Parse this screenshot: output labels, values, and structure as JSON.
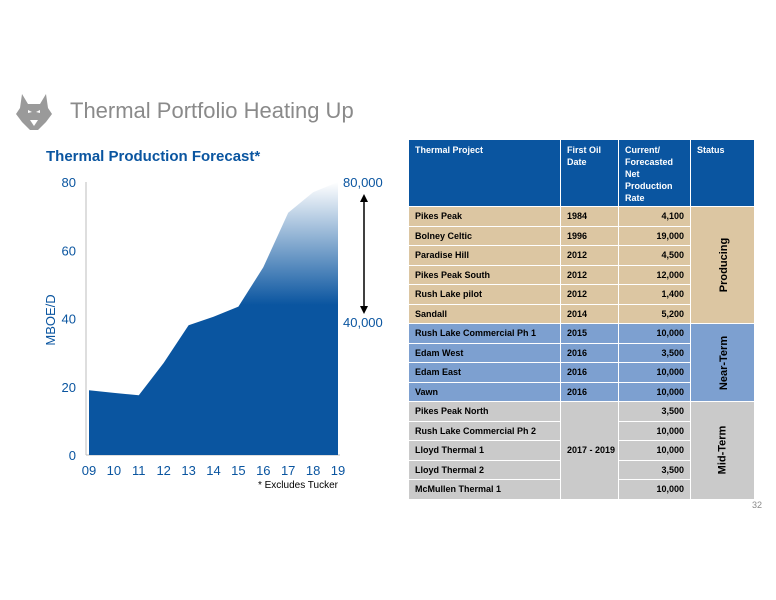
{
  "slide": {
    "title": "Thermal Portfolio Heating Up",
    "page_number": "32"
  },
  "icons": {
    "logo": "husky-head-logo"
  },
  "colors": {
    "primary_blue": "#0a55a0",
    "producing_bg": "#dcc6a2",
    "near_term_bg": "#7da0d0",
    "mid_term_bg": "#cacaca",
    "title_gray": "#8a8a8a"
  },
  "chart_data": {
    "type": "area",
    "title": "Thermal Production Forecast*",
    "ylabel": "MBOE/D",
    "xlabel": "",
    "categories": [
      "09",
      "10",
      "11",
      "12",
      "13",
      "14",
      "15",
      "16",
      "17",
      "18",
      "19"
    ],
    "values": [
      19,
      18.2,
      17.5,
      27,
      38,
      40.5,
      43.5,
      55,
      71,
      77,
      80
    ],
    "ylim": [
      0,
      80
    ],
    "yticks": [
      "0",
      "20",
      "40",
      "60",
      "80"
    ],
    "grid": false,
    "fill": "gradient: solid blue below ~43, fading to white at top",
    "right_annotations": {
      "top": "80,000",
      "bottom": "40,000"
    },
    "footnote": "* Excludes Tucker"
  },
  "table": {
    "headers": {
      "project": "Thermal Project",
      "first_oil": "First Oil Date",
      "rate": "Current/ Forecasted Net Production Rate",
      "status": "Status"
    },
    "groups": [
      {
        "status": "Producing",
        "rows": [
          {
            "project": "Pikes Peak",
            "date": "1984",
            "rate": "4,100"
          },
          {
            "project": "Bolney Celtic",
            "date": "1996",
            "rate": "19,000"
          },
          {
            "project": "Paradise Hill",
            "date": "2012",
            "rate": "4,500"
          },
          {
            "project": "Pikes Peak South",
            "date": "2012",
            "rate": "12,000"
          },
          {
            "project": "Rush Lake pilot",
            "date": "2012",
            "rate": "1,400"
          },
          {
            "project": "Sandall",
            "date": "2014",
            "rate": "5,200"
          }
        ]
      },
      {
        "status": "Near-Term",
        "rows": [
          {
            "project": "Rush Lake Commercial Ph 1",
            "date": "2015",
            "rate": "10,000"
          },
          {
            "project": "Edam West",
            "date": "2016",
            "rate": "3,500"
          },
          {
            "project": "Edam East",
            "date": "2016",
            "rate": "10,000"
          },
          {
            "project": "Vawn",
            "date": "2016",
            "rate": "10,000"
          }
        ]
      },
      {
        "status": "Mid-Term",
        "date_span": "2017 - 2019",
        "rows": [
          {
            "project": "Pikes Peak North",
            "rate": "3,500"
          },
          {
            "project": "Rush Lake Commercial Ph 2",
            "rate": "10,000"
          },
          {
            "project": "Lloyd Thermal 1",
            "rate": "10,000"
          },
          {
            "project": "Lloyd Thermal 2",
            "rate": "3,500"
          },
          {
            "project": "McMullen Thermal 1",
            "rate": "10,000"
          }
        ]
      }
    ]
  }
}
